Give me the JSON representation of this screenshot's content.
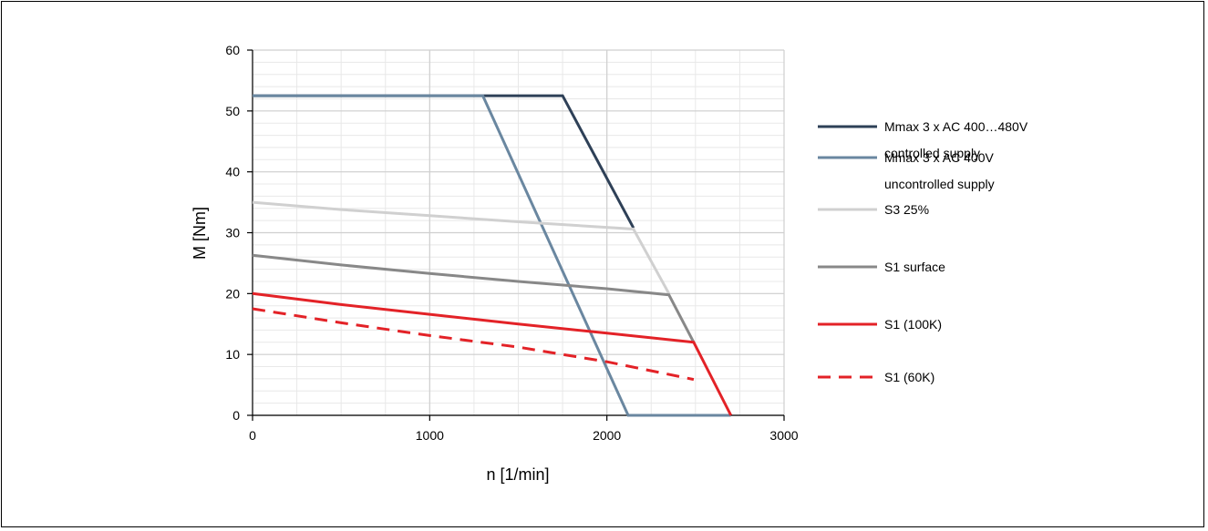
{
  "chart_data": {
    "type": "line",
    "xlabel": "n [1/min]",
    "ylabel": "M [Nm]",
    "xlim": [
      0,
      3000
    ],
    "ylim": [
      0,
      60
    ],
    "x_ticks": [
      0,
      1000,
      2000,
      3000
    ],
    "y_ticks": [
      0,
      10,
      20,
      30,
      40,
      50,
      60
    ],
    "x_minor_step": 250,
    "y_minor_step": 2,
    "grid": true,
    "legend_position": "right",
    "series": [
      {
        "name": "Mmax 3 x AC 400…480V controlled supply",
        "legend_lines": [
          "Mmax 3 x AC 400…480V",
          "controlled supply"
        ],
        "color": "#2e4057",
        "dash": "solid",
        "x": [
          0,
          1750,
          2150
        ],
        "y": [
          52.5,
          52.5,
          30.8
        ]
      },
      {
        "name": "Mmax 3 x AC 400V uncontrolled supply",
        "legend_lines": [
          "Mmax 3 x AC 400V",
          "uncontrolled supply"
        ],
        "color": "#6a87a0",
        "dash": "solid",
        "x": [
          0,
          1300,
          2120,
          2700
        ],
        "y": [
          52.5,
          52.5,
          0,
          0
        ]
      },
      {
        "name": "S3 25%",
        "legend_lines": [
          "S3 25%"
        ],
        "color": "#d0d0d0",
        "dash": "solid",
        "x": [
          0,
          500,
          1000,
          1500,
          2150,
          2350
        ],
        "y": [
          35,
          33.8,
          32.8,
          31.8,
          30.6,
          20
        ]
      },
      {
        "name": "S1 surface",
        "legend_lines": [
          "S1 surface"
        ],
        "color": "#888888",
        "dash": "solid",
        "x": [
          0,
          500,
          1000,
          1500,
          2000,
          2350,
          2490
        ],
        "y": [
          26.3,
          24.7,
          23.3,
          22,
          20.8,
          19.8,
          12
        ]
      },
      {
        "name": "S1 (100K)",
        "legend_lines": [
          "S1 (100K)"
        ],
        "color": "#e32227",
        "dash": "solid",
        "x": [
          0,
          500,
          1000,
          1500,
          2000,
          2490,
          2700
        ],
        "y": [
          20,
          18.2,
          16.6,
          15,
          13.5,
          12,
          0
        ]
      },
      {
        "name": "S1 (60K)",
        "legend_lines": [
          "S1 (60K)"
        ],
        "color": "#e32227",
        "dash": "dashed",
        "x": [
          0,
          500,
          1000,
          1500,
          2000,
          2490
        ],
        "y": [
          17.5,
          15.2,
          13.1,
          11.2,
          8.8,
          5.9
        ]
      }
    ]
  }
}
